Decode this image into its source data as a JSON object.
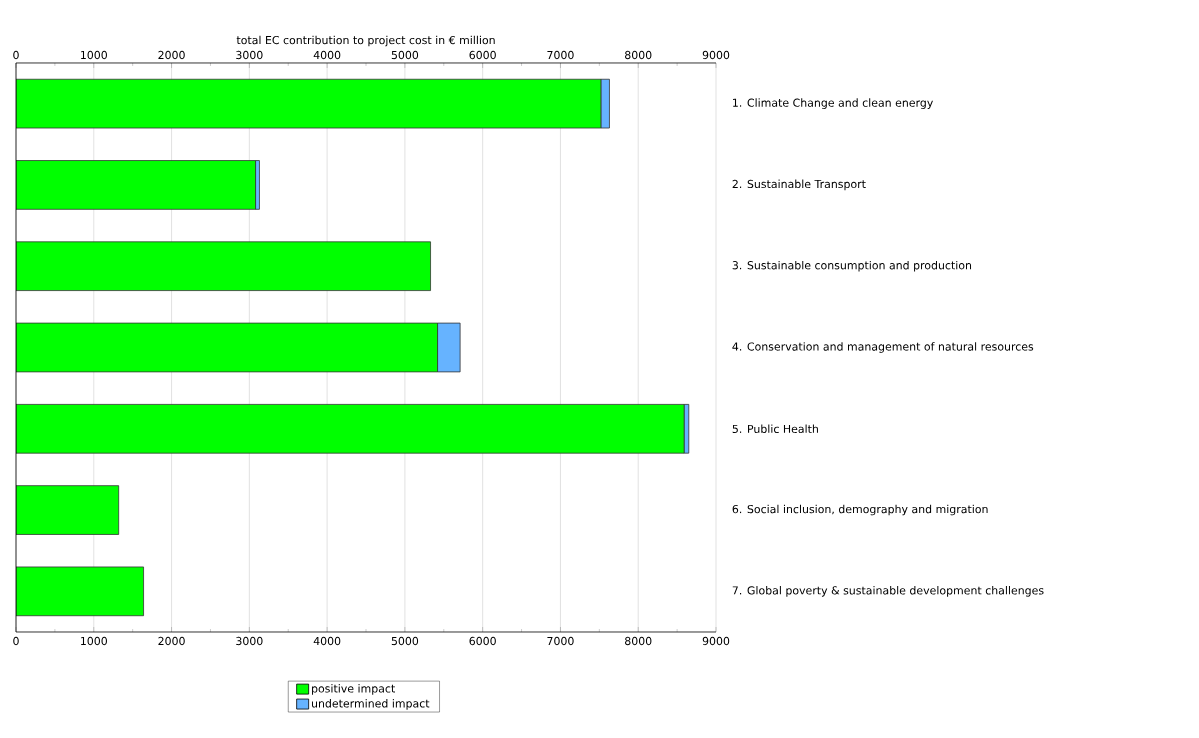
{
  "chart_data": {
    "type": "bar",
    "orientation": "horizontal",
    "stacked": true,
    "x2label": "total EC contribution to project cost in € million",
    "categories": [
      "1. Climate Change and clean energy",
      "2. Sustainable Transport",
      "3. Sustainable consumption and production",
      "4. Conservation and management of natural resources",
      "5. Public Health",
      "6. Social inclusion, demography and migration",
      "7. Global poverty & sustainable development challenges"
    ],
    "series": [
      {
        "name": "positive impact",
        "color": "#00ff00",
        "values": [
          7520,
          3080,
          5330,
          5420,
          8590,
          1320,
          1640
        ]
      },
      {
        "name": "undetermined impact",
        "color": "#66b3ff",
        "values": [
          110,
          50,
          0,
          290,
          60,
          0,
          0
        ]
      }
    ],
    "xlim": [
      0,
      9000
    ],
    "xticks": [
      0,
      1000,
      2000,
      3000,
      4000,
      5000,
      6000,
      7000,
      8000,
      9000
    ],
    "x2lim": [
      0,
      9000
    ],
    "x2ticks": [
      0,
      1000,
      2000,
      3000,
      4000,
      5000,
      6000,
      7000,
      8000,
      9000
    ],
    "grid": "x",
    "legend": "bottom"
  }
}
